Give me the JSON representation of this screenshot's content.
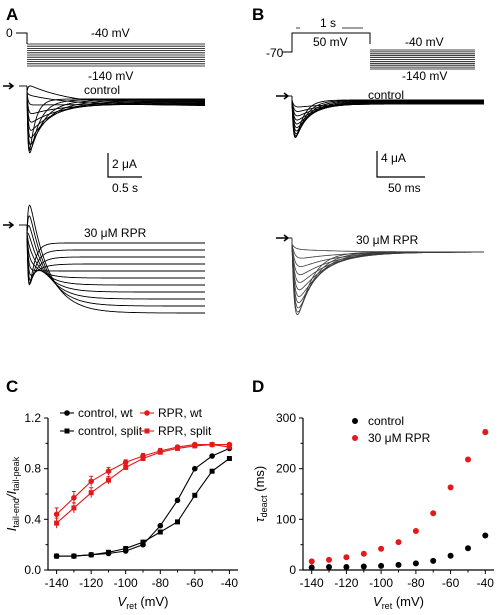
{
  "panels": {
    "A": {
      "label": "A",
      "protocol": {
        "hold_label": "0",
        "top_label": "-40 mV",
        "bottom_label": "-140 mV"
      },
      "control_label": "control",
      "drug_label": "30 μM RPR",
      "scale": {
        "current": "2 μA",
        "time": "0.5 s"
      }
    },
    "B": {
      "label": "B",
      "protocol": {
        "hold_label": "-70",
        "duration_label": "1 s",
        "step_label": "50 mV",
        "top_label": "-40 mV",
        "bottom_label": "-140 mV"
      },
      "control_label": "control",
      "drug_label": "30 μM RPR",
      "scale": {
        "current": "4 μA",
        "time": "50 ms"
      }
    },
    "C": {
      "label": "C"
    },
    "D": {
      "label": "D"
    }
  },
  "chart_data": [
    {
      "panel": "C",
      "type": "line",
      "xlabel": {
        "main": "V",
        "sub": "ret",
        "unit": " (mV)"
      },
      "ylabel": {
        "p1": "I",
        "s1": "tail-end",
        "p2": "/I",
        "s2": "tail-peak"
      },
      "xlim": [
        -145,
        -35
      ],
      "ylim": [
        0,
        1.2
      ],
      "xticks": [
        -140,
        -120,
        -100,
        -80,
        -60,
        -40
      ],
      "yticks": [
        0.0,
        0.4,
        0.8,
        1.2
      ],
      "ytick_labels": [
        "0.0",
        "0.4",
        "0.8",
        "1.2"
      ],
      "legend_position": "top",
      "series": [
        {
          "name": "control, wt",
          "color": "#000000",
          "marker": "circle",
          "x": [
            -140,
            -130,
            -120,
            -110,
            -100,
            -90,
            -80,
            -70,
            -60,
            -50,
            -40
          ],
          "y": [
            0.11,
            0.11,
            0.12,
            0.13,
            0.15,
            0.2,
            0.35,
            0.55,
            0.8,
            0.9,
            0.96
          ],
          "err": []
        },
        {
          "name": "RPR, wt",
          "color": "#e31a1c",
          "marker": "circle",
          "x": [
            -140,
            -130,
            -120,
            -110,
            -100,
            -90,
            -80,
            -70,
            -60,
            -50,
            -40
          ],
          "y": [
            0.44,
            0.57,
            0.7,
            0.78,
            0.85,
            0.9,
            0.94,
            0.97,
            0.99,
            0.99,
            0.99
          ],
          "err": [
            0.05,
            0.05,
            0.04,
            0.03,
            0.02,
            0.02,
            0.02,
            0.01,
            0.01,
            0.01,
            0.01
          ]
        },
        {
          "name": "control, split",
          "color": "#000000",
          "marker": "square",
          "x": [
            -140,
            -130,
            -120,
            -110,
            -100,
            -90,
            -80,
            -70,
            -60,
            -50,
            -40
          ],
          "y": [
            0.11,
            0.11,
            0.12,
            0.14,
            0.17,
            0.22,
            0.3,
            0.38,
            0.59,
            0.78,
            0.88
          ],
          "err": []
        },
        {
          "name": "RPR, split",
          "color": "#e31a1c",
          "marker": "square",
          "x": [
            -140,
            -130,
            -120,
            -110,
            -100,
            -90,
            -80,
            -70,
            -60,
            -50,
            -40
          ],
          "y": [
            0.37,
            0.49,
            0.61,
            0.71,
            0.81,
            0.88,
            0.93,
            0.96,
            0.98,
            0.99,
            0.97
          ],
          "err": [
            0.04,
            0.04,
            0.04,
            0.03,
            0.02,
            0.02,
            0.01,
            0.01,
            0.01,
            0.01,
            0.01
          ]
        }
      ]
    },
    {
      "panel": "D",
      "type": "scatter",
      "xlabel": {
        "main": "V",
        "sub": "ret",
        "unit": " (mV)"
      },
      "ylabel": {
        "p1": "τ",
        "s1": "deact",
        "p2": " (ms)",
        "s2": ""
      },
      "xlim": [
        -145,
        -35
      ],
      "ylim": [
        0,
        300
      ],
      "xticks": [
        -140,
        -120,
        -100,
        -80,
        -60,
        -40
      ],
      "yticks": [
        0,
        100,
        200,
        300
      ],
      "ytick_labels": [
        "0",
        "100",
        "200",
        "300"
      ],
      "legend_position": "top-left",
      "series": [
        {
          "name": "control",
          "color": "#000000",
          "marker": "circle",
          "x": [
            -140,
            -130,
            -120,
            -110,
            -100,
            -90,
            -80,
            -70,
            -60,
            -50,
            -40
          ],
          "y": [
            5,
            6,
            6,
            7,
            8,
            10,
            13,
            18,
            28,
            43,
            68
          ],
          "err": []
        },
        {
          "name": "30 μM RPR",
          "color": "#e31a1c",
          "marker": "circle",
          "x": [
            -140,
            -130,
            -120,
            -110,
            -100,
            -90,
            -80,
            -70,
            -60,
            -50,
            -40
          ],
          "y": [
            17,
            20,
            25,
            32,
            42,
            55,
            77,
            112,
            163,
            218,
            272
          ],
          "err": [
            0,
            0,
            0,
            0,
            0,
            0,
            0,
            0,
            0,
            0,
            5
          ]
        }
      ]
    }
  ]
}
